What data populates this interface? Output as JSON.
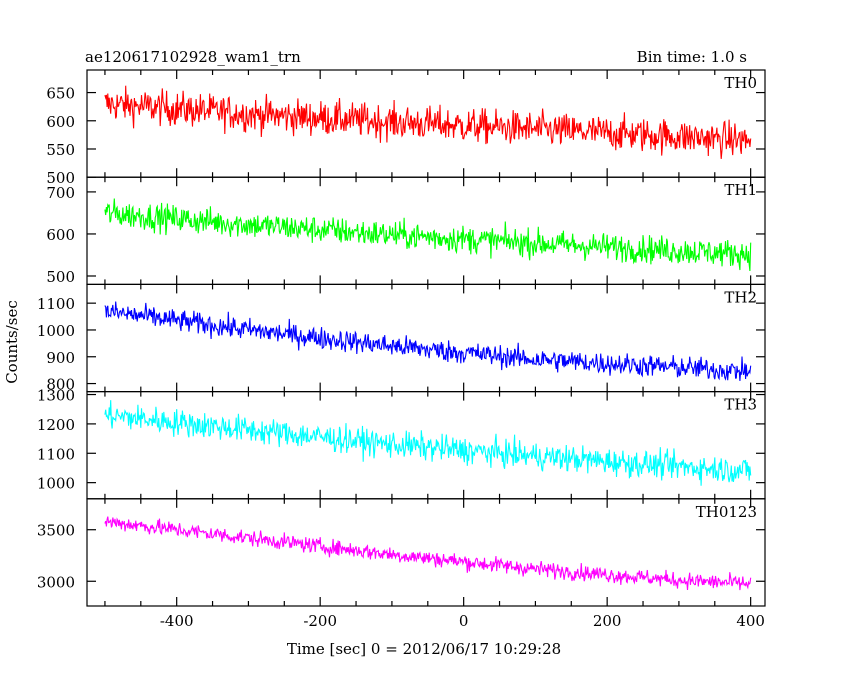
{
  "chart_data": {
    "type": "line",
    "title": "ae120617102928_wam1_trn",
    "subtitle": "Bin time: 1.0 s",
    "xlabel": "Time [sec] 0 = 2012/06/17 10:29:28",
    "ylabel": "Counts/sec",
    "xlim": [
      -525,
      420
    ],
    "x_ticks": [
      -400,
      -200,
      0,
      200,
      400
    ],
    "x_range": [
      -500,
      400
    ],
    "grid": false,
    "panels": [
      {
        "name": "TH0",
        "color": "#ff0000",
        "ylim": [
          500,
          690
        ],
        "y_ticks": [
          500,
          550,
          600,
          650
        ],
        "trend": [
          [
            -500,
            630
          ],
          [
            -300,
            612
          ],
          [
            -100,
            598
          ],
          [
            100,
            585
          ],
          [
            300,
            572
          ],
          [
            400,
            565
          ]
        ],
        "noise": 28
      },
      {
        "name": "TH1",
        "color": "#00ff00",
        "ylim": [
          480,
          735
        ],
        "y_ticks": [
          500,
          600,
          700
        ],
        "trend": [
          [
            -500,
            650
          ],
          [
            -300,
            622
          ],
          [
            -100,
            598
          ],
          [
            100,
            578
          ],
          [
            300,
            560
          ],
          [
            400,
            552
          ]
        ],
        "noise": 30
      },
      {
        "name": "TH2",
        "color": "#0000ff",
        "ylim": [
          770,
          1170
        ],
        "y_ticks": [
          800,
          900,
          1000,
          1100
        ],
        "trend": [
          [
            -500,
            1070
          ],
          [
            -300,
            1000
          ],
          [
            -100,
            940
          ],
          [
            100,
            890
          ],
          [
            300,
            860
          ],
          [
            400,
            845
          ]
        ],
        "noise": 38
      },
      {
        "name": "TH3",
        "color": "#00ffff",
        "ylim": [
          945,
          1310
        ],
        "y_ticks": [
          1000,
          1100,
          1200,
          1300
        ],
        "trend": [
          [
            -500,
            1230
          ],
          [
            -300,
            1180
          ],
          [
            -100,
            1130
          ],
          [
            100,
            1090
          ],
          [
            300,
            1055
          ],
          [
            400,
            1040
          ]
        ],
        "noise": 42
      },
      {
        "name": "TH0123",
        "color": "#ff00ff",
        "ylim": [
          2760,
          3800
        ],
        "y_ticks": [
          3000,
          3500
        ],
        "trend": [
          [
            -500,
            3580
          ],
          [
            -300,
            3420
          ],
          [
            -100,
            3260
          ],
          [
            100,
            3120
          ],
          [
            300,
            3010
          ],
          [
            400,
            2975
          ]
        ],
        "noise": 70
      }
    ]
  }
}
